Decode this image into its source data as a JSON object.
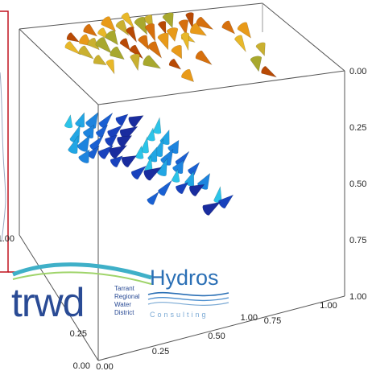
{
  "chart_data": {
    "type": "scatter",
    "subtype": "3d-cone-field",
    "axes": {
      "right_vertical": {
        "ticks": [
          "0.00",
          "0.25",
          "0.50",
          "0.75",
          "1.00"
        ]
      },
      "left_vertical": {
        "ticks": [
          "1.00"
        ]
      },
      "front_depth": {
        "ticks": [
          "1.00",
          "0.75",
          "0.50",
          "0.25",
          "0.00"
        ]
      },
      "bottom_depth": {
        "ticks": [
          "0.00",
          "0.25",
          "1.00"
        ]
      }
    },
    "grid": false,
    "legend": "none",
    "series": [
      {
        "color": "#d97a10",
        "colors": [
          "#b84a05",
          "#d6700e",
          "#e89a1a",
          "#e8b82a",
          "#c9b030",
          "#a8a82e"
        ],
        "points": [
          [
            0.22,
            0.08,
            0.06
          ],
          [
            0.3,
            0.06,
            0.05
          ],
          [
            0.38,
            0.05,
            0.04
          ],
          [
            0.46,
            0.04,
            0.04
          ],
          [
            0.54,
            0.03,
            0.05
          ],
          [
            0.62,
            0.03,
            0.06
          ],
          [
            0.7,
            0.04,
            0.07
          ],
          [
            0.78,
            0.05,
            0.08
          ],
          [
            0.26,
            0.12,
            0.07
          ],
          [
            0.34,
            0.1,
            0.06
          ],
          [
            0.42,
            0.09,
            0.05
          ],
          [
            0.5,
            0.08,
            0.06
          ],
          [
            0.58,
            0.07,
            0.07
          ],
          [
            0.66,
            0.08,
            0.08
          ],
          [
            0.74,
            0.09,
            0.09
          ],
          [
            0.2,
            0.16,
            0.09
          ],
          [
            0.28,
            0.15,
            0.08
          ],
          [
            0.36,
            0.14,
            0.07
          ],
          [
            0.44,
            0.13,
            0.07
          ],
          [
            0.52,
            0.12,
            0.08
          ],
          [
            0.6,
            0.12,
            0.09
          ],
          [
            0.68,
            0.13,
            0.1
          ],
          [
            0.24,
            0.2,
            0.1
          ],
          [
            0.32,
            0.18,
            0.09
          ],
          [
            0.4,
            0.17,
            0.09
          ],
          [
            0.48,
            0.16,
            0.1
          ],
          [
            0.56,
            0.16,
            0.11
          ],
          [
            0.64,
            0.17,
            0.12
          ],
          [
            0.28,
            0.24,
            0.12
          ],
          [
            0.36,
            0.22,
            0.11
          ],
          [
            0.44,
            0.21,
            0.12
          ],
          [
            0.52,
            0.2,
            0.13
          ],
          [
            0.6,
            0.21,
            0.14
          ],
          [
            0.3,
            0.28,
            0.15
          ],
          [
            0.4,
            0.27,
            0.15
          ],
          [
            0.5,
            0.25,
            0.16
          ],
          [
            0.58,
            0.26,
            0.17
          ],
          [
            0.86,
            0.08,
            0.1
          ],
          [
            0.92,
            0.1,
            0.12
          ],
          [
            0.88,
            0.16,
            0.16
          ],
          [
            0.95,
            0.18,
            0.18
          ],
          [
            0.9,
            0.26,
            0.22
          ],
          [
            0.96,
            0.3,
            0.24
          ],
          [
            0.72,
            0.22,
            0.18
          ],
          [
            0.62,
            0.3,
            0.22
          ]
        ]
      },
      {
        "color": "#1e5fd6",
        "colors": [
          "#2cc4e8",
          "#22a6e4",
          "#1d84de",
          "#1a60d2",
          "#1842bd",
          "#1a2c9e"
        ],
        "points": [
          [
            0.1,
            0.34,
            0.3
          ],
          [
            0.16,
            0.33,
            0.3
          ],
          [
            0.22,
            0.32,
            0.31
          ],
          [
            0.28,
            0.32,
            0.32
          ],
          [
            0.34,
            0.33,
            0.33
          ],
          [
            0.4,
            0.34,
            0.34
          ],
          [
            0.46,
            0.36,
            0.35
          ],
          [
            0.12,
            0.4,
            0.33
          ],
          [
            0.18,
            0.39,
            0.34
          ],
          [
            0.24,
            0.38,
            0.35
          ],
          [
            0.3,
            0.38,
            0.36
          ],
          [
            0.36,
            0.39,
            0.37
          ],
          [
            0.42,
            0.4,
            0.38
          ],
          [
            0.48,
            0.42,
            0.39
          ],
          [
            0.14,
            0.46,
            0.36
          ],
          [
            0.2,
            0.45,
            0.37
          ],
          [
            0.26,
            0.44,
            0.38
          ],
          [
            0.32,
            0.44,
            0.39
          ],
          [
            0.38,
            0.45,
            0.4
          ],
          [
            0.44,
            0.47,
            0.41
          ],
          [
            0.5,
            0.48,
            0.42
          ],
          [
            0.16,
            0.52,
            0.39
          ],
          [
            0.22,
            0.51,
            0.4
          ],
          [
            0.28,
            0.5,
            0.41
          ],
          [
            0.34,
            0.5,
            0.42
          ],
          [
            0.4,
            0.51,
            0.43
          ],
          [
            0.46,
            0.53,
            0.44
          ],
          [
            0.52,
            0.55,
            0.45
          ],
          [
            0.24,
            0.57,
            0.43
          ],
          [
            0.3,
            0.56,
            0.44
          ],
          [
            0.36,
            0.56,
            0.45
          ],
          [
            0.42,
            0.58,
            0.46
          ],
          [
            0.48,
            0.6,
            0.47
          ],
          [
            0.54,
            0.62,
            0.48
          ],
          [
            0.32,
            0.62,
            0.47
          ],
          [
            0.38,
            0.63,
            0.48
          ],
          [
            0.44,
            0.65,
            0.49
          ],
          [
            0.5,
            0.67,
            0.5
          ],
          [
            0.56,
            0.69,
            0.51
          ],
          [
            0.4,
            0.7,
            0.52
          ],
          [
            0.46,
            0.72,
            0.53
          ],
          [
            0.52,
            0.74,
            0.54
          ],
          [
            0.58,
            0.76,
            0.55
          ],
          [
            0.08,
            0.5,
            0.34
          ],
          [
            0.1,
            0.58,
            0.38
          ],
          [
            0.34,
            0.72,
            0.56
          ],
          [
            0.62,
            0.8,
            0.58
          ],
          [
            0.56,
            0.82,
            0.6
          ]
        ]
      }
    ]
  },
  "logos": {
    "trwd": {
      "word": "trwd",
      "lines": [
        "Tarrant",
        "Regional",
        "Water",
        "District"
      ]
    },
    "hydros": {
      "word": "Hydros",
      "tagline": "Consulting"
    }
  }
}
